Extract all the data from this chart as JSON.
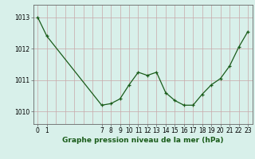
{
  "x": [
    0,
    1,
    7,
    8,
    9,
    10,
    11,
    12,
    13,
    14,
    15,
    16,
    17,
    18,
    19,
    20,
    21,
    22,
    23
  ],
  "y": [
    1013.0,
    1012.4,
    1010.2,
    1010.25,
    1010.4,
    1010.85,
    1011.25,
    1011.15,
    1011.25,
    1010.6,
    1010.35,
    1010.2,
    1010.2,
    1010.55,
    1010.85,
    1011.05,
    1011.45,
    1012.05,
    1012.55
  ],
  "line_color": "#1a5c1a",
  "marker_color": "#1a5c1a",
  "bg_color": "#d8f0ea",
  "grid_major_color": "#c8a8a8",
  "grid_minor_color": "#d8c0c0",
  "xlabel": "Graphe pression niveau de la mer (hPa)",
  "xlim": [
    -0.5,
    23.5
  ],
  "ylim": [
    1009.6,
    1013.4
  ],
  "yticks": [
    1010,
    1011,
    1012,
    1013
  ],
  "xlabel_fontsize": 6.5,
  "tick_fontsize": 5.5
}
